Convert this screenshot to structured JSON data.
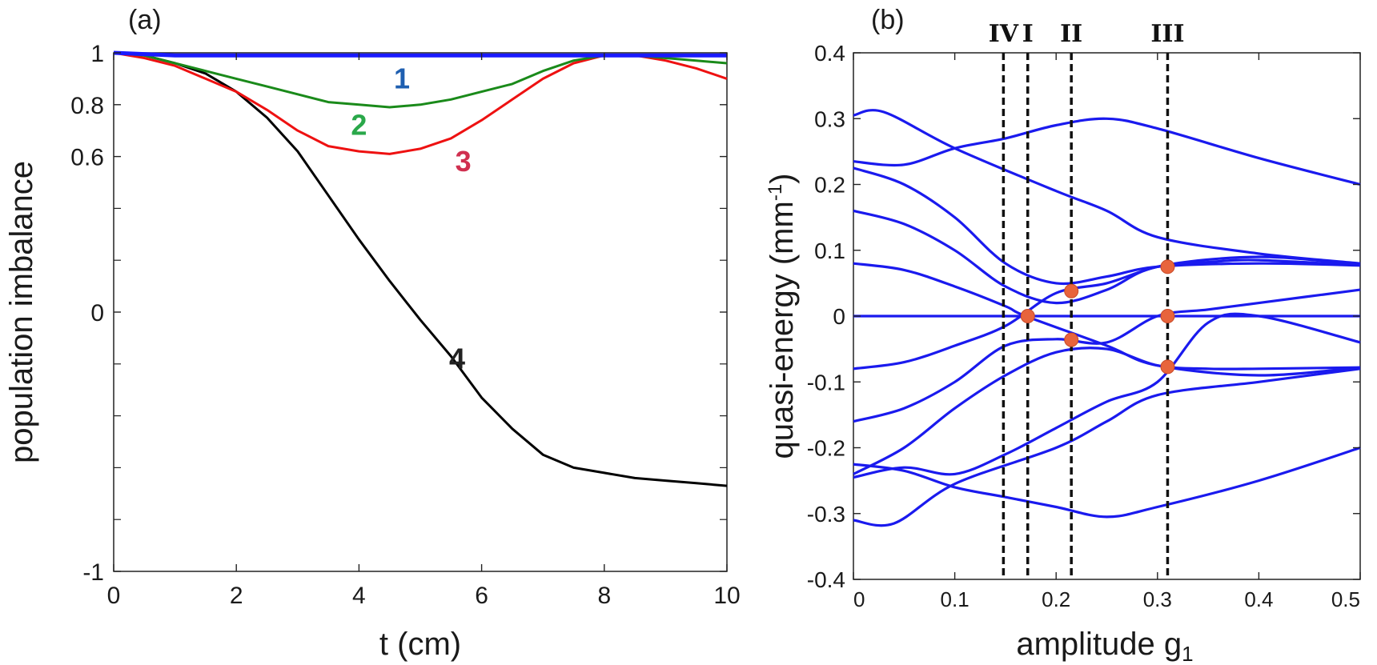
{
  "chart_data": [
    {
      "panel": "(a)",
      "type": "line",
      "xlabel": "t (cm)",
      "ylabel": "population imbalance",
      "xlim": [
        0,
        10
      ],
      "ylim": [
        -1,
        1
      ],
      "xticks": [
        "0",
        "2",
        "4",
        "6",
        "8",
        "10"
      ],
      "yticks": [
        {
          "value": -1,
          "label": "-1"
        },
        {
          "value": 0,
          "label": "0"
        },
        {
          "value": 0.6,
          "label": "0.6"
        },
        {
          "value": 0.8,
          "label": "0.8"
        },
        {
          "value": 1,
          "label": "1"
        }
      ],
      "series": [
        {
          "label": "1",
          "color": "#1a1aff",
          "labelColor": "#1f5fb0",
          "labelAt": [
            4.7,
            0.9
          ],
          "x": [
            0,
            1,
            2,
            3,
            4,
            5,
            6,
            7,
            8,
            9,
            10
          ],
          "y": [
            1,
            0.99,
            0.99,
            0.99,
            0.99,
            0.99,
            0.99,
            0.99,
            0.99,
            0.99,
            0.99
          ]
        },
        {
          "label": "2",
          "color": "#1a8a1a",
          "labelColor": "#2aa84a",
          "labelAt": [
            4.0,
            0.72
          ],
          "x": [
            0,
            0.5,
            1,
            1.5,
            2,
            2.5,
            3,
            3.5,
            4,
            4.5,
            5,
            5.5,
            6,
            6.5,
            7,
            7.5,
            8,
            8.5,
            9,
            9.5,
            10
          ],
          "y": [
            1,
            0.99,
            0.96,
            0.93,
            0.9,
            0.87,
            0.84,
            0.81,
            0.8,
            0.79,
            0.8,
            0.82,
            0.85,
            0.88,
            0.93,
            0.97,
            0.99,
            0.99,
            0.98,
            0.97,
            0.96
          ]
        },
        {
          "label": "3",
          "color": "#ee1111",
          "labelColor": "#d03050",
          "labelAt": [
            5.7,
            0.58
          ],
          "x": [
            0,
            0.5,
            1,
            1.5,
            2,
            2.5,
            3,
            3.5,
            4,
            4.5,
            5,
            5.5,
            6,
            6.5,
            7,
            7.5,
            8,
            8.5,
            9,
            9.5,
            10
          ],
          "y": [
            1,
            0.98,
            0.95,
            0.9,
            0.85,
            0.78,
            0.7,
            0.64,
            0.62,
            0.61,
            0.63,
            0.67,
            0.74,
            0.82,
            0.9,
            0.96,
            0.99,
            0.99,
            0.97,
            0.94,
            0.9
          ]
        },
        {
          "label": "4",
          "color": "#000000",
          "labelColor": "#222222",
          "labelAt": [
            5.6,
            -0.18
          ],
          "x": [
            0,
            0.5,
            1,
            1.5,
            2,
            2.5,
            3,
            3.5,
            4,
            4.5,
            5,
            5.5,
            6,
            6.5,
            7,
            7.5,
            8,
            8.5,
            9,
            9.5,
            10
          ],
          "y": [
            1,
            0.99,
            0.96,
            0.92,
            0.85,
            0.75,
            0.62,
            0.45,
            0.28,
            0.12,
            -0.03,
            -0.17,
            -0.33,
            -0.45,
            -0.55,
            -0.6,
            -0.62,
            -0.64,
            -0.65,
            -0.66,
            -0.67
          ]
        }
      ]
    },
    {
      "panel": "(b)",
      "type": "line",
      "xlabel": "amplitude g",
      "xlabel_sub": "1",
      "ylabel": "quasi-energy (mm",
      "ylabel_sup": "-1",
      "ylabel_end": ")",
      "xlim": [
        0,
        0.5
      ],
      "ylim": [
        -0.4,
        0.4
      ],
      "xticks": [
        "0",
        "0.1",
        "0.2",
        "0.3",
        "0.4",
        "0.5"
      ],
      "yticks": [
        "-0.4",
        "-0.3",
        "-0.2",
        "-0.1",
        "0",
        "0.1",
        "0.2",
        "0.3",
        "0.4"
      ],
      "line_color": "#1a1aee",
      "series": [
        {
          "x": [
            0,
            0.03,
            0.1,
            0.2,
            0.25,
            0.3,
            0.4,
            0.5
          ],
          "y": [
            0.305,
            0.31,
            0.255,
            0.19,
            0.16,
            0.12,
            0.095,
            0.08
          ]
        },
        {
          "x": [
            0,
            0.05,
            0.1,
            0.15,
            0.2,
            0.25,
            0.3,
            0.4,
            0.5
          ],
          "y": [
            0.235,
            0.23,
            0.255,
            0.27,
            0.29,
            0.3,
            0.285,
            0.24,
            0.2
          ]
        },
        {
          "x": [
            0,
            0.05,
            0.1,
            0.15,
            0.2,
            0.25,
            0.3,
            0.4,
            0.5
          ],
          "y": [
            0.225,
            0.2,
            0.15,
            0.08,
            0.05,
            0.06,
            0.075,
            0.08,
            0.077
          ]
        },
        {
          "x": [
            0,
            0.05,
            0.1,
            0.15,
            0.2,
            0.25,
            0.3,
            0.4,
            0.5
          ],
          "y": [
            0.16,
            0.14,
            0.1,
            0.045,
            0.02,
            0.04,
            0.075,
            0.09,
            0.078
          ]
        },
        {
          "x": [
            0,
            0.05,
            0.1,
            0.15,
            0.17,
            0.25,
            0.3,
            0.4,
            0.5
          ],
          "y": [
            0.08,
            0.07,
            0.045,
            0.015,
            0.0,
            -0.045,
            -0.075,
            -0.09,
            -0.078
          ]
        },
        {
          "x": [
            0,
            0.5
          ],
          "y": [
            0,
            0
          ]
        },
        {
          "x": [
            0,
            0.05,
            0.1,
            0.15,
            0.2,
            0.25,
            0.3,
            0.35,
            0.4,
            0.5
          ],
          "y": [
            -0.08,
            -0.07,
            -0.045,
            -0.015,
            0.035,
            0.05,
            0.075,
            0.082,
            0.085,
            0.077
          ]
        },
        {
          "x": [
            0,
            0.05,
            0.1,
            0.15,
            0.2,
            0.25,
            0.3,
            0.35,
            0.4,
            0.5
          ],
          "y": [
            -0.16,
            -0.14,
            -0.1,
            -0.045,
            -0.035,
            -0.04,
            0.0,
            0.01,
            0.02,
            0.04
          ]
        },
        {
          "x": [
            0,
            0.05,
            0.1,
            0.15,
            0.2,
            0.25,
            0.3,
            0.35,
            0.4,
            0.5
          ],
          "y": [
            -0.24,
            -0.2,
            -0.14,
            -0.09,
            -0.055,
            -0.05,
            -0.075,
            -0.08,
            -0.08,
            -0.078
          ]
        },
        {
          "x": [
            0,
            0.05,
            0.1,
            0.15,
            0.2,
            0.25,
            0.3,
            0.35,
            0.4,
            0.5
          ],
          "y": [
            -0.245,
            -0.23,
            -0.24,
            -0.21,
            -0.17,
            -0.13,
            -0.1,
            -0.01,
            0.0,
            -0.04
          ]
        },
        {
          "x": [
            0,
            0.05,
            0.1,
            0.15,
            0.2,
            0.25,
            0.3,
            0.4,
            0.5
          ],
          "y": [
            -0.225,
            -0.235,
            -0.26,
            -0.275,
            -0.29,
            -0.305,
            -0.29,
            -0.25,
            -0.2
          ]
        },
        {
          "x": [
            0,
            0.04,
            0.1,
            0.2,
            0.25,
            0.3,
            0.4,
            0.5
          ],
          "y": [
            -0.31,
            -0.315,
            -0.255,
            -0.2,
            -0.16,
            -0.12,
            -0.1,
            -0.08
          ]
        }
      ],
      "vlines": [
        {
          "label": "IV",
          "x": 0.148
        },
        {
          "label": "I",
          "x": 0.172
        },
        {
          "label": "II",
          "x": 0.215
        },
        {
          "label": "III",
          "x": 0.31
        }
      ],
      "markers": {
        "color": "#e8643c",
        "points": [
          [
            0.172,
            0
          ],
          [
            0.215,
            0.038
          ],
          [
            0.215,
            -0.036
          ],
          [
            0.31,
            0.075
          ],
          [
            0.31,
            0
          ],
          [
            0.31,
            -0.077
          ]
        ]
      }
    }
  ]
}
